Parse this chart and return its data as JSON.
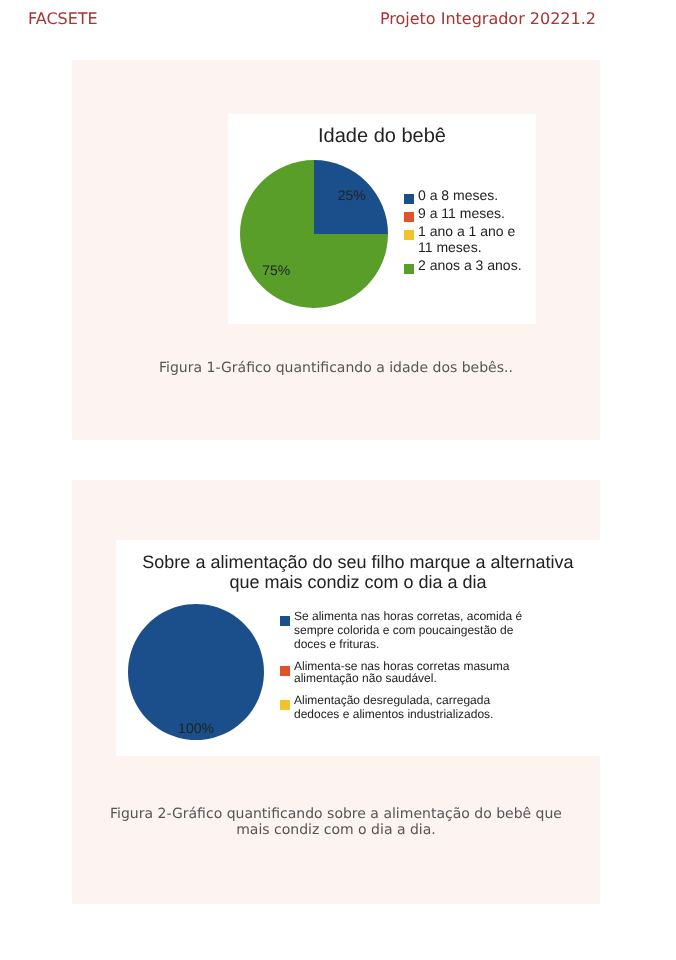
{
  "chart_data": [
    {
      "type": "pie",
      "title": "Idade do bebê",
      "categories": [
        "0 a 8 meses.",
        "9 a 11 meses.",
        "1 ano a 1 ano e 11 meses.",
        "2 anos a 3 anos."
      ],
      "values": [
        25,
        0,
        0,
        75
      ],
      "value_labels": [
        "25%",
        null,
        null,
        "75%"
      ],
      "colors": [
        "#1b4f8c",
        "#e0522a",
        "#f2c42c",
        "#5a9e2a"
      ],
      "legend": "right",
      "annotations": [
        "FACSETE",
        "Projeto Integrador 20221.2",
        "Figura 1-Gráfico quantificando a idade dos bebês.."
      ]
    },
    {
      "type": "pie",
      "title": "Sobre a alimentação do seu filho marque a alternativa que mais condiz com o dia a dia",
      "categories": [
        "Se alimenta nas horas corretas, acomida é sempre colorida e com poucaingestão de doces e frituras.",
        "Alimenta-se nas horas corretas masuma alimentação não saudável.",
        "Alimentação desregulada, carregada dedoces e alimentos industrializados."
      ],
      "values": [
        100,
        0,
        0
      ],
      "value_labels": [
        "100%",
        null,
        null
      ],
      "colors": [
        "#1b4f8c",
        "#e0522a",
        "#f2c42c"
      ],
      "legend": "right",
      "annotations": [
        "Figura 2-Gráfico quantificando sobre a alimentação do bebê que mais condiz com o dia a dia."
      ]
    }
  ]
}
